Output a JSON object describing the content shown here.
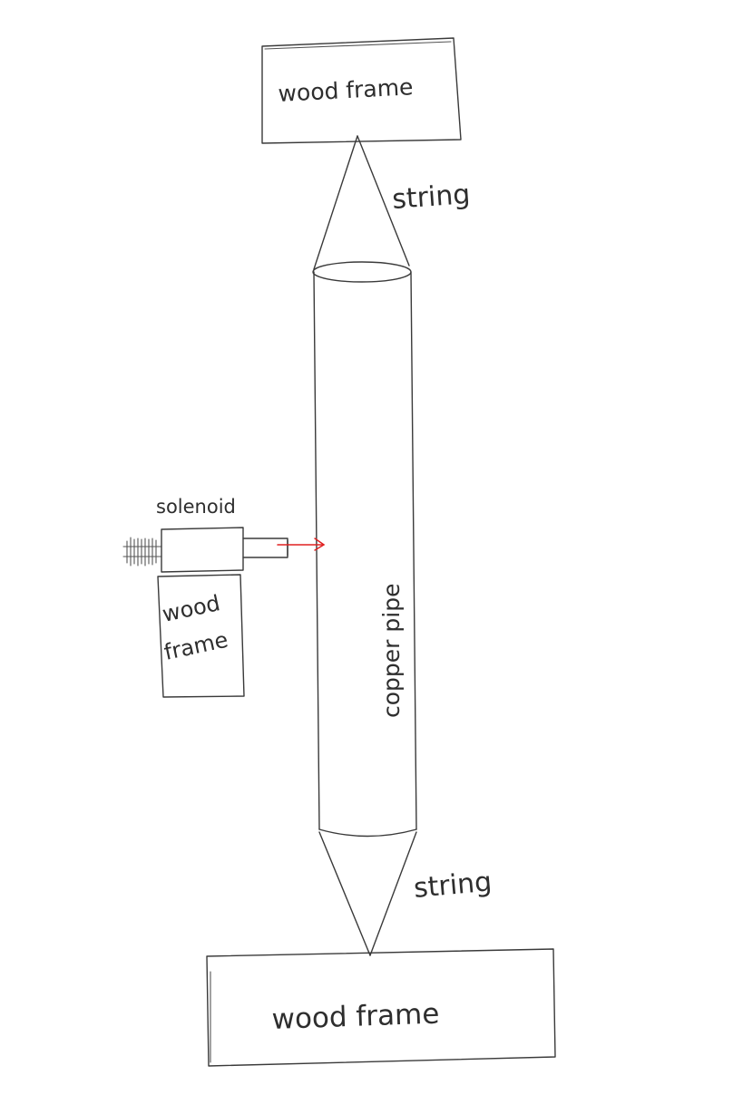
{
  "labels": {
    "top_frame": "wood frame",
    "top_string": "string",
    "solenoid": "solenoid",
    "side_frame_line1": "wood",
    "side_frame_line2": "frame",
    "pipe": "copper pipe",
    "bottom_string": "string",
    "bottom_frame": "wood frame"
  },
  "colors": {
    "pencil": "#3a3a3a",
    "arrow": "#e02020",
    "background": "#ffffff"
  }
}
